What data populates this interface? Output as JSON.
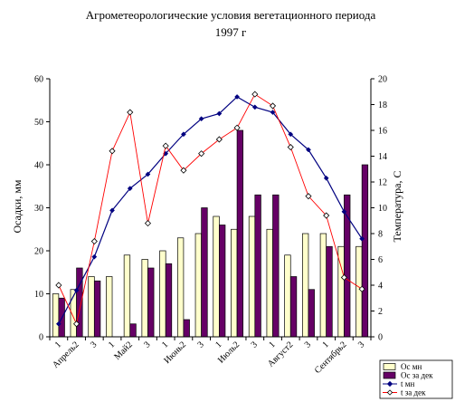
{
  "chart_data": {
    "type": "bar+line",
    "title_line1": "Агрометеорологические условия вегетационного периода",
    "title_line2": "1997 г",
    "ylabel_left": "Осадки, мм",
    "ylabel_right": "Температура, С",
    "ylim_left": [
      0,
      60
    ],
    "yticks_left": [
      "0",
      "10",
      "20",
      "30",
      "40",
      "50",
      "60"
    ],
    "ylim_right": [
      0,
      20
    ],
    "yticks_right": [
      "0",
      "2",
      "4",
      "6",
      "8",
      "10",
      "12",
      "14",
      "16",
      "18",
      "20"
    ],
    "x_labels": [
      "1",
      "Апрель2",
      "3",
      "1",
      "Май2",
      "3",
      "1",
      "Июнь2",
      "3",
      "1",
      "Июль2",
      "3",
      "1",
      "Август2",
      "3",
      "1",
      "Сентябрь2",
      "3"
    ],
    "grid": false,
    "legend_position": "bottom-right",
    "series": [
      {
        "name": "Ос мн",
        "kind": "bar",
        "color": "#FFFFCC",
        "values": [
          10,
          11,
          14,
          14,
          19,
          18,
          20,
          23,
          24,
          28,
          25,
          28,
          25,
          19,
          24,
          24,
          21,
          21
        ]
      },
      {
        "name": "Ос за дек",
        "kind": "bar",
        "color": "#660066",
        "values": [
          9,
          16,
          13,
          0,
          3,
          16,
          17,
          4,
          30,
          26,
          48,
          33,
          33,
          14,
          11,
          21,
          33,
          40
        ]
      },
      {
        "name": "t мн",
        "kind": "line",
        "axis": "right",
        "color": "#000080",
        "marker": "filled-diamond",
        "values": [
          1.0,
          3.6,
          6.2,
          9.8,
          11.5,
          12.6,
          14.2,
          15.7,
          16.9,
          17.3,
          18.6,
          17.8,
          17.4,
          15.7,
          14.5,
          12.3,
          9.7,
          7.6
        ]
      },
      {
        "name": "t за дек",
        "kind": "line",
        "axis": "right",
        "color": "#FF0000",
        "marker": "open-diamond",
        "values": [
          4.0,
          1.0,
          7.4,
          14.4,
          17.4,
          8.8,
          14.8,
          12.9,
          14.2,
          15.3,
          16.2,
          18.8,
          17.9,
          14.7,
          10.9,
          9.4,
          4.6,
          3.7
        ]
      }
    ]
  }
}
